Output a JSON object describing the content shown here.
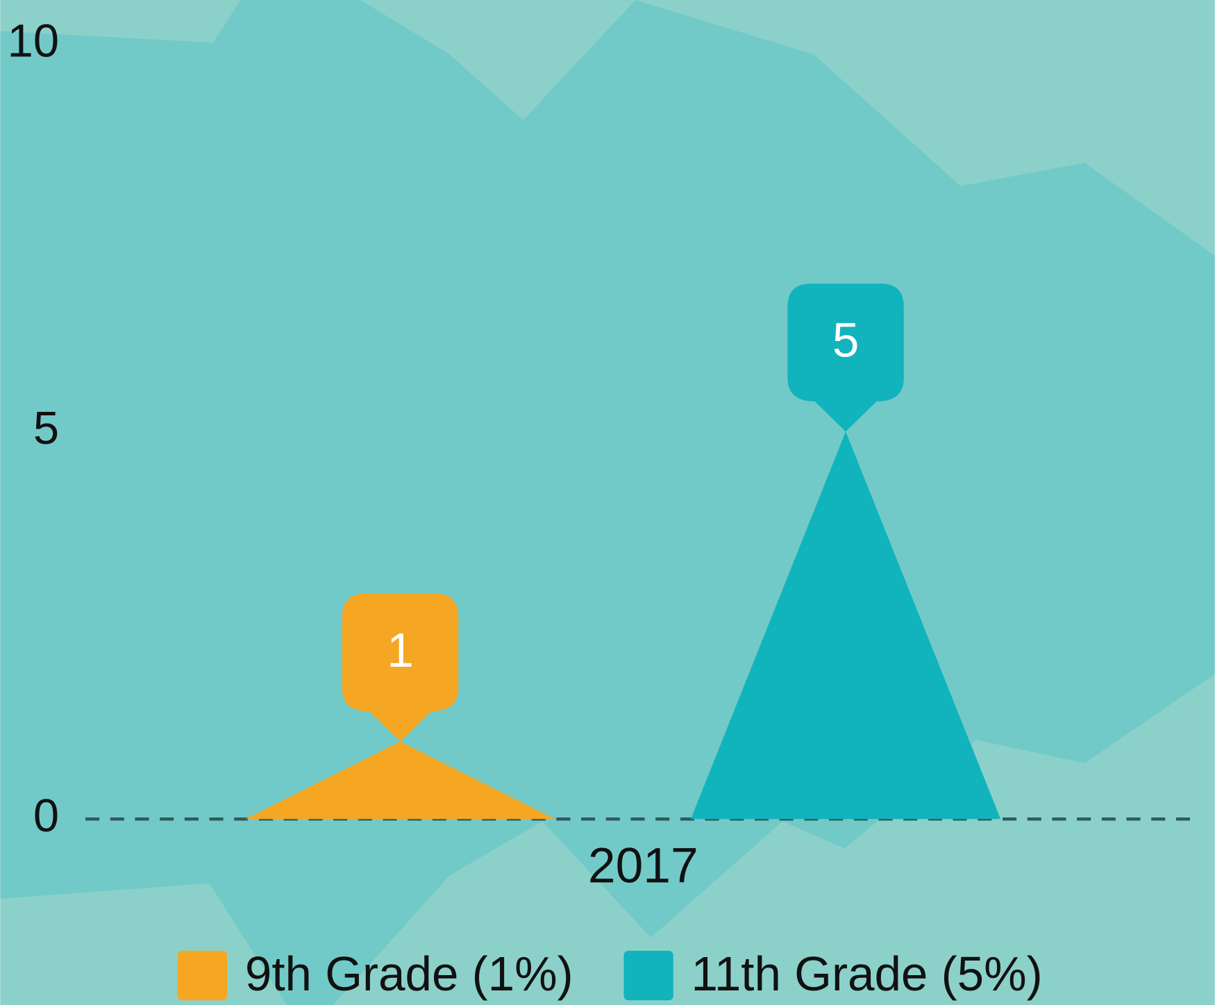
{
  "chart_data": {
    "type": "bar",
    "categories": [
      "2017"
    ],
    "series": [
      {
        "name": "9th Grade (1%)",
        "color": "#f5a623",
        "values": [
          1
        ]
      },
      {
        "name": "11th Grade (5%)",
        "color": "#11b3bc",
        "values": [
          5
        ]
      }
    ],
    "ylim": [
      0,
      10
    ],
    "yticks": [
      0,
      5,
      10
    ]
  }
}
